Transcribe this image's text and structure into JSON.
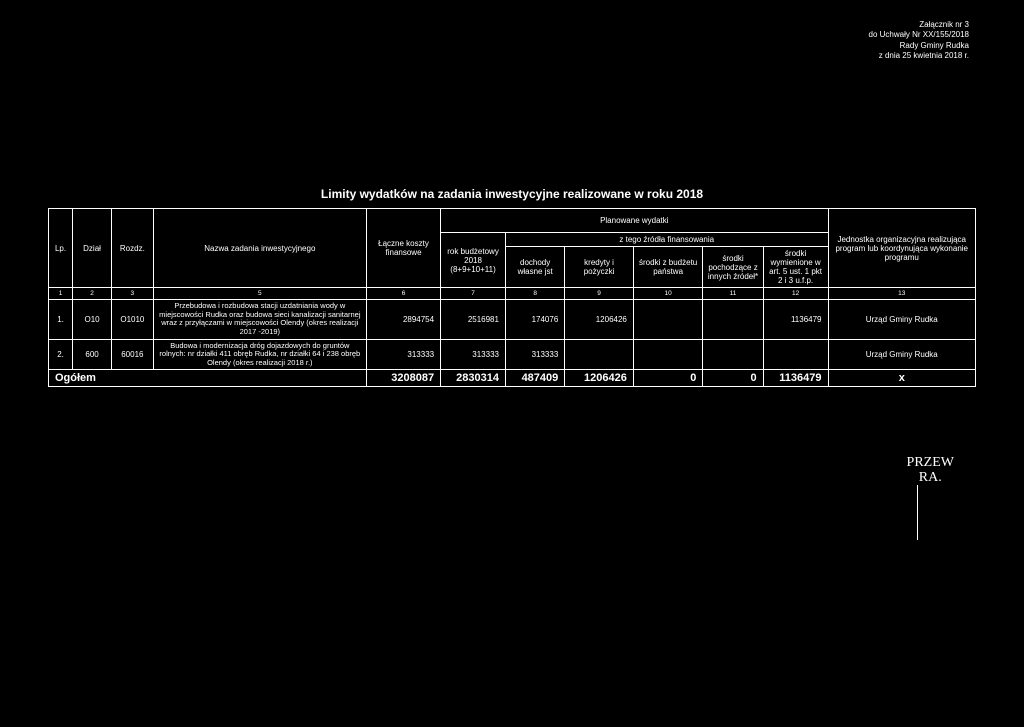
{
  "annex": {
    "l1": "Załącznik nr 3",
    "l2": "do Uchwały Nr XX/155/2018",
    "l3": "Rady Gminy Rudka",
    "l4": "z dnia 25 kwietnia 2018 r."
  },
  "title": "Limity wydatków na zadania inwestycyjne realizowane w roku  2018",
  "headers": {
    "lp": "Lp.",
    "dzial": "Dział",
    "rozdz": "Rozdz.",
    "nazwa": "Nazwa zadania inwestycyjnego",
    "laczne": "Łączne koszty finansowe",
    "planowane": "Planowane wydatki",
    "rok": "rok budżetowy 2018 (8+9+10+11)",
    "ztego": "z tego źródła finansowania",
    "dochody": "dochody własne jst",
    "kredyty": "kredyty i pożyczki",
    "srodkiBudzetu": "środki z budżetu państwa",
    "srodkiInnych": "środki pochodzące z innych źródeł*",
    "srodkiWym": "środki wymienione w art. 5 ust. 1 pkt 2 i 3 u.f.p.",
    "jednostka": "Jednostka organizacyjna realizująca program lub koordynująca wykonanie programu"
  },
  "idx": {
    "c1": "1",
    "c2": "2",
    "c3": "3",
    "c5": "5",
    "c6": "6",
    "c7": "7",
    "c8": "8",
    "c9": "9",
    "c10": "10",
    "c11": "11",
    "c12": "12",
    "c13": "13"
  },
  "rows": [
    {
      "lp": "1.",
      "dzial": "O10",
      "rozdz": "O1010",
      "nazwa": "Przebudowa i rozbudowa stacji uzdatniania wody w miejscowości Rudka oraz budowa sieci kanalizacji sanitarnej wraz z przyłączami w miejscowości Olendy (okres realizacji 2017 -2019)",
      "laczne": "2894754",
      "rok": "2516981",
      "dochody": "174076",
      "kredyty": "1206426",
      "sb": "",
      "si": "",
      "sw": "1136479",
      "jo": "Urząd Gminy Rudka"
    },
    {
      "lp": "2.",
      "dzial": "600",
      "rozdz": "60016",
      "nazwa": "Budowa i modernizacja dróg dojazdowych do gruntów rolnych: nr działki 411 obręb Rudka, nr działki 64 i 238 obręb Olendy (okres realizacji 2018 r.)",
      "laczne": "313333",
      "rok": "313333",
      "dochody": "313333",
      "kredyty": "",
      "sb": "",
      "si": "",
      "sw": "",
      "jo": "Urząd Gminy Rudka"
    }
  ],
  "total": {
    "label": "Ogółem",
    "laczne": "3208087",
    "rok": "2830314",
    "dochody": "487409",
    "kredyty": "1206426",
    "sb": "0",
    "si": "0",
    "sw": "1136479",
    "jo": "x"
  },
  "signature": {
    "l1": "PRZEW",
    "l2": "RA."
  }
}
